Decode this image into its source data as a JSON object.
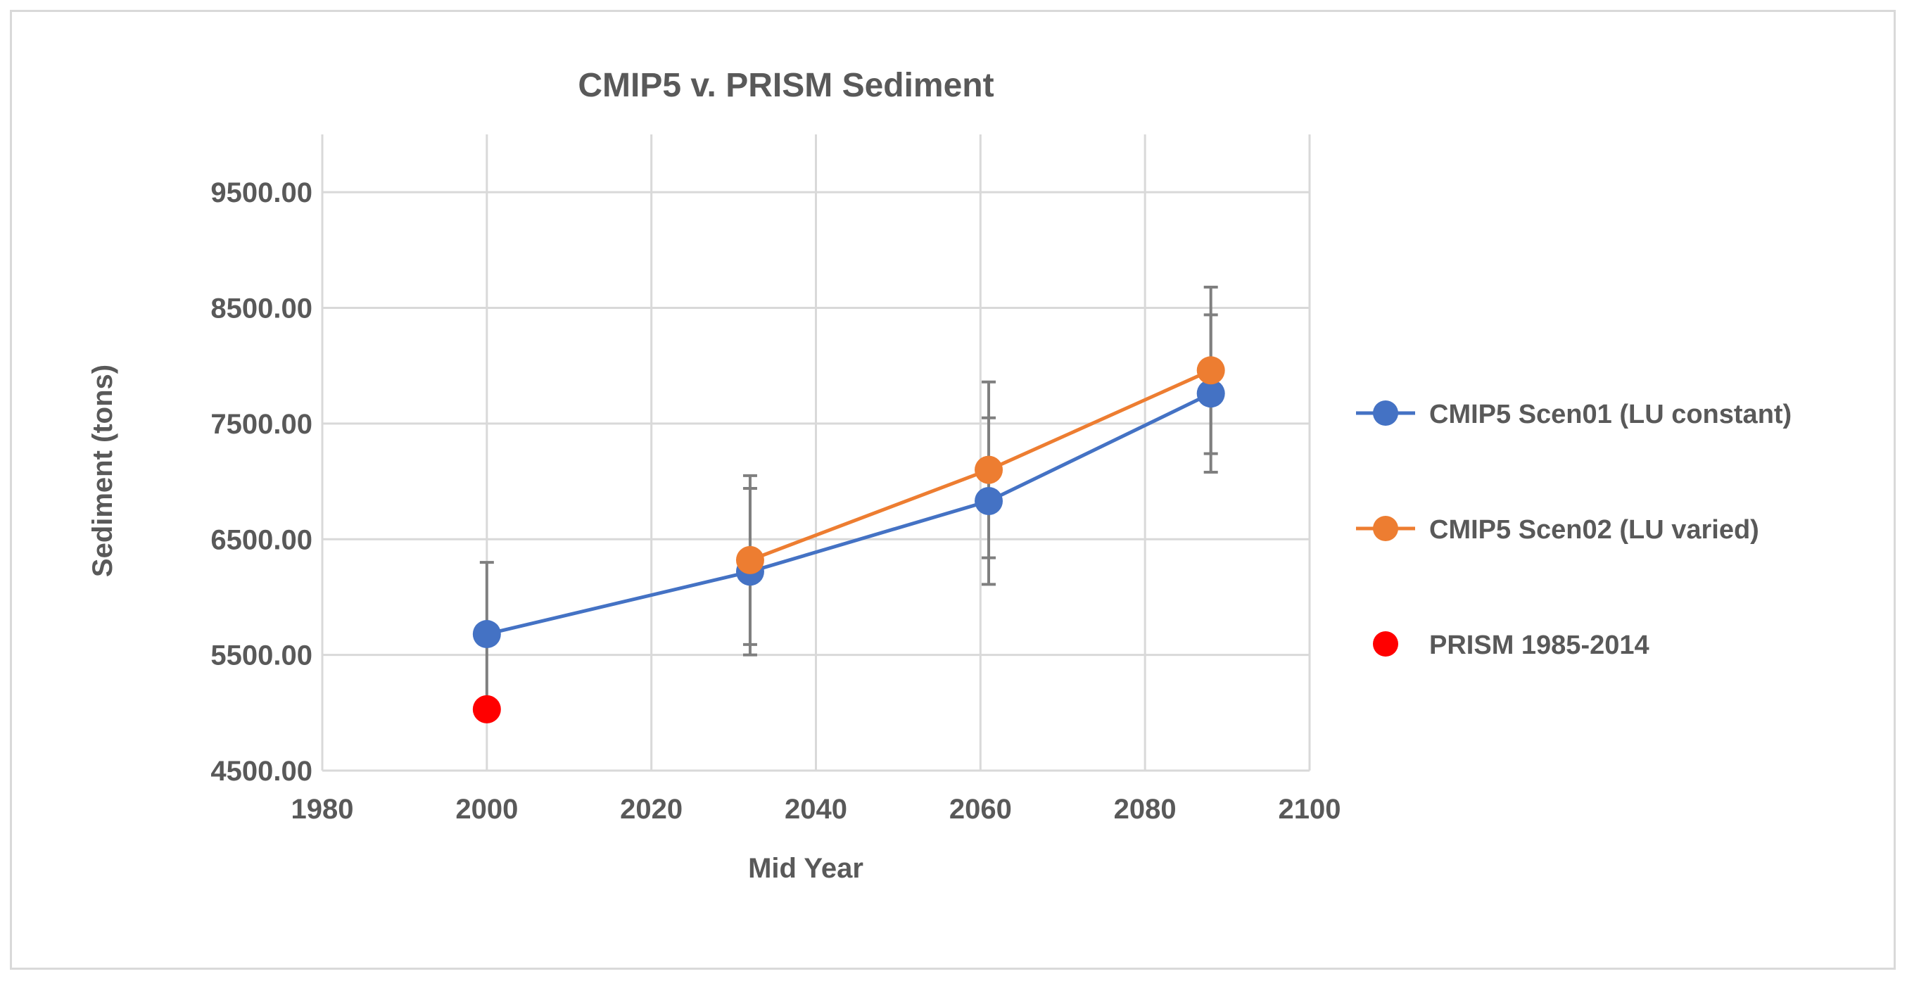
{
  "chart_data": {
    "type": "scatter",
    "title": "CMIP5 v. PRISM Sediment",
    "xlabel": "Mid Year",
    "ylabel": "Sediment (tons)",
    "xlim": [
      1980,
      2100
    ],
    "ylim": [
      4500,
      10000
    ],
    "x_ticks": [
      1980,
      2000,
      2020,
      2040,
      2060,
      2080,
      2100
    ],
    "x_tick_labels": [
      "1980",
      "2000",
      "2020",
      "2040",
      "2060",
      "2080",
      "2100"
    ],
    "y_ticks": [
      4500,
      5500,
      6500,
      7500,
      8500,
      9500
    ],
    "y_tick_labels": [
      "4500.00",
      "5500.00",
      "6500.00",
      "7500.00",
      "8500.00",
      "9500.00"
    ],
    "grid": true,
    "legend_position": "right",
    "series": [
      {
        "name": "CMIP5 Scen01 (LU constant)",
        "color": "#4472c4",
        "connected": true,
        "points": [
          {
            "x": 2000,
            "y": 5680,
            "err": 620
          },
          {
            "x": 2032,
            "y": 6220,
            "err": 720
          },
          {
            "x": 2061,
            "y": 6830,
            "err": 720
          },
          {
            "x": 2088,
            "y": 7760,
            "err": 680
          }
        ]
      },
      {
        "name": "CMIP5 Scen02 (LU varied)",
        "color": "#ed7d31",
        "connected": true,
        "points": [
          {
            "x": 2032,
            "y": 6320,
            "err": 730
          },
          {
            "x": 2061,
            "y": 7100,
            "err": 760
          },
          {
            "x": 2088,
            "y": 7960,
            "err": 720
          }
        ]
      },
      {
        "name": "PRISM 1985-2014",
        "color": "#ff0000",
        "connected": false,
        "points": [
          {
            "x": 2000,
            "y": 5030
          }
        ]
      }
    ]
  }
}
